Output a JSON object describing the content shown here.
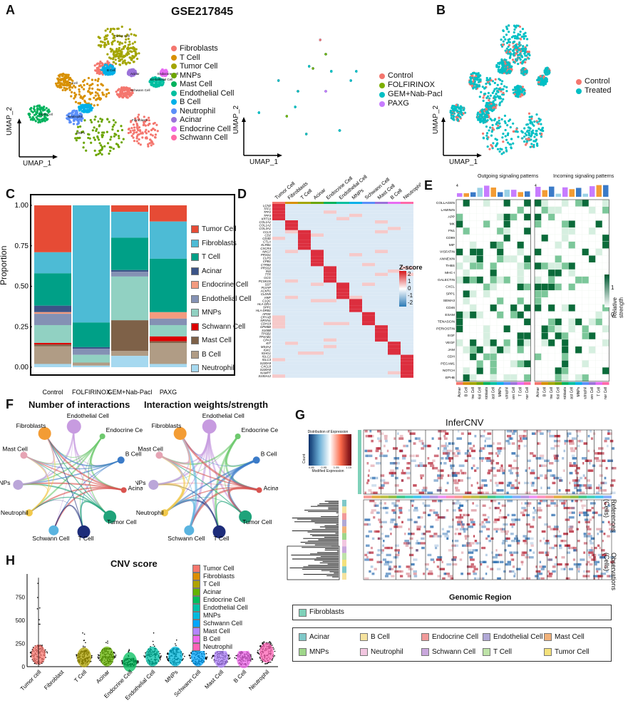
{
  "panel_labels": {
    "A": "A",
    "B": "B",
    "C": "C",
    "D": "D",
    "E": "E",
    "F": "F",
    "G": "G",
    "H": "H"
  },
  "panelA": {
    "title": "GSE217845",
    "umap_x": "UMAP_1",
    "umap_y": "UMAP_2",
    "celltypes": [
      {
        "name": "Fibroblasts",
        "color": "#F4766E"
      },
      {
        "name": "T Cell",
        "color": "#D89000"
      },
      {
        "name": "Tumor Cell",
        "color": "#A3A500"
      },
      {
        "name": "MNPs",
        "color": "#6CA500"
      },
      {
        "name": "Mast Cell",
        "color": "#00B25C"
      },
      {
        "name": "Endothelial Cell",
        "color": "#00BFA0"
      },
      {
        "name": "B Cell",
        "color": "#00B0E8"
      },
      {
        "name": "Neutrophil",
        "color": "#5B8FF9"
      },
      {
        "name": "Acinar",
        "color": "#9B72D9"
      },
      {
        "name": "Endocrine Cell",
        "color": "#E76BF3"
      },
      {
        "name": "Schwann Cell",
        "color": "#FF6AA8"
      }
    ],
    "cluster_labels": [
      "Tumor Cell",
      "T Cell",
      "B Cell",
      "Acinar",
      "Endothelial Cell",
      "Endocrine Cell",
      "Schwann Cell",
      "MNPs",
      "Neutrophil",
      "Mast Cell",
      "Fibroblasts"
    ],
    "treatments": [
      {
        "name": "Control",
        "color": "#F4766E"
      },
      {
        "name": "FOLFIRINOX",
        "color": "#7CAE00"
      },
      {
        "name": "GEM+Nab-Pacl",
        "color": "#00BFC4"
      },
      {
        "name": "PAXG",
        "color": "#C77CFF"
      }
    ],
    "umap_x2": "UMAP_1",
    "umap_y2": "UMAP_2"
  },
  "panelB": {
    "umap_x": "UMAP_1",
    "umap_y": "UMAP_2",
    "groups": [
      {
        "name": "Control",
        "color": "#F4766E"
      },
      {
        "name": "Treated",
        "color": "#00BFC4"
      }
    ]
  },
  "chart_data": [
    {
      "type": "bar",
      "panel": "C",
      "ylabel": "Proportion",
      "ylim": [
        0,
        1
      ],
      "yticks": [
        "0.00",
        "0.25",
        "0.50",
        "0.75",
        "1.00"
      ],
      "categories": [
        "Control",
        "FOLFIRINOX",
        "GEM+Nab-Pacl",
        "PAXG"
      ],
      "series": [
        {
          "name": "Tumor Cell",
          "color": "#E64B35",
          "values": [
            0.29,
            0.0,
            0.04,
            0.1
          ]
        },
        {
          "name": "Fibroblasts",
          "color": "#4DBBD5",
          "values": [
            0.13,
            0.76,
            0.16,
            0.23
          ]
        },
        {
          "name": "T Cell",
          "color": "#00A087",
          "values": [
            0.2,
            0.16,
            0.2,
            0.33
          ]
        },
        {
          "name": "Acinar",
          "color": "#3C5488",
          "values": [
            0.04,
            0.01,
            0.01,
            0.0
          ]
        },
        {
          "name": "Endocrine Cell",
          "color": "#F39B7F",
          "values": [
            0.01,
            0.0,
            0.0,
            0.04
          ]
        },
        {
          "name": "Endothelial Cell",
          "color": "#8491B4",
          "values": [
            0.07,
            0.04,
            0.03,
            0.04
          ]
        },
        {
          "name": "MNPs",
          "color": "#91D1C2",
          "values": [
            0.11,
            0.05,
            0.27,
            0.07
          ]
        },
        {
          "name": "Schwann Cell",
          "color": "#DC0000",
          "values": [
            0.01,
            0.0,
            0.0,
            0.03
          ]
        },
        {
          "name": "Mast Cell",
          "color": "#7E6148",
          "values": [
            0.01,
            0.0,
            0.19,
            0.01
          ]
        },
        {
          "name": "B Cell",
          "color": "#B09C85",
          "values": [
            0.11,
            0.02,
            0.03,
            0.13
          ]
        },
        {
          "name": "Neutrophil",
          "color": "#A6D9F0",
          "values": [
            0.02,
            0.01,
            0.07,
            0.02
          ]
        }
      ]
    },
    {
      "type": "heatmap",
      "panel": "D",
      "columns": [
        "Tumor Cell",
        "Fibroblasts",
        "T Cell",
        "Acinar",
        "Endocrine Cell",
        "Endothelial Cell",
        "MNPs",
        "Schwann Cell",
        "Mast Cell",
        "B Cell",
        "Neutrophil"
      ],
      "genes": [
        "LCN2",
        "TFF1",
        "TFF2",
        "TFF3",
        "KRT19",
        "COL1A1",
        "COL1A2",
        "COL3A1",
        "CCL5",
        "CD2",
        "CD3D",
        "CTLA",
        "KLRB1",
        "CXCR4",
        "NKG7",
        "PRSS1",
        "CLPS",
        "CPB1",
        "CTRB2",
        "PRSS2",
        "INS",
        "TTR",
        "GCG",
        "PCSK1N",
        "SST",
        "PLVAP",
        "ACKR1",
        "CLDN5",
        "VWF",
        "C1QC",
        "HLA-DRA",
        "SPP1",
        "HLA-DRB1",
        "APOE",
        "CRYAB",
        "NRXN1",
        "CDH19",
        "GPM6B",
        "S100B",
        "TPSB2",
        "TPSAB1",
        "CPA3",
        "KIT",
        "MS4A2",
        "IGKC",
        "IGHG1",
        "IGLC2",
        "IGLC3",
        "S100A9",
        "CXCL8",
        "S100A8",
        "NAMPT",
        "S100A12"
      ],
      "legend_title": "Z-score",
      "legend_ticks": [
        "2",
        "1",
        "0",
        "-1",
        "-2"
      ]
    },
    {
      "type": "heatmap",
      "panel": "E",
      "outgoing_title": "Outgoing signaling patterns",
      "incoming_title": "Incoming signaling patterns",
      "pathways": [
        "COLLAGEN",
        "LAMININ",
        "APP",
        "MK",
        "FN1",
        "CD99",
        "MIF",
        "VISFATIN",
        "ANNEXIN",
        "THBS",
        "MHC-I",
        "GALECTIN",
        "CXCL",
        "SPP1",
        "SEMA3",
        "CD46",
        "ESAM",
        "TENASCIN",
        "PERIOSTIN",
        "EGF",
        "VEGF",
        "JAM",
        "CDH",
        "PECAM1",
        "NOTCH",
        "EPHB"
      ],
      "columns": [
        "Acinar",
        "B Cell",
        "Endocrine Cell",
        "Endothelial Cell",
        "Fibroblasts",
        "Mast Cell",
        "MNPs",
        "Neutrophil",
        "Schwann Cell",
        "T Cell",
        "Tumor Cell"
      ],
      "bar_max_left": "4",
      "bar_max_right": "4",
      "legend_title": "Relative strength",
      "legend_ticks": [
        "1",
        "0"
      ]
    },
    {
      "type": "scatter",
      "panel": "H",
      "title": "CNV score",
      "categories": [
        "Tumor cell",
        "Fibroblast",
        "T Cell",
        "Acinar",
        "Endocrine Cell",
        "Endothelial Cell",
        "MNPs",
        "Schwann Cell",
        "Mast Cell",
        "B Cell",
        "Neutrophil"
      ],
      "medians": [
        130,
        0,
        100,
        110,
        50,
        110,
        110,
        110,
        95,
        90,
        150
      ],
      "max": [
        960,
        0,
        300,
        250,
        200,
        350,
        300,
        260,
        260,
        260,
        300
      ],
      "yticks": [
        "0",
        "250",
        "500",
        "750"
      ],
      "ylim": [
        0,
        1000
      ]
    }
  ],
  "panelF": {
    "title_left": "Number of interactions",
    "title_right": "Interaction weights/strength",
    "nodes": [
      {
        "name": "Endothelial Cell",
        "color": "#C79BE0"
      },
      {
        "name": "Endocrine Cell",
        "color": "#6EC96E"
      },
      {
        "name": "B Cell",
        "color": "#3B7BC8"
      },
      {
        "name": "Acinar",
        "color": "#D9534F"
      },
      {
        "name": "Tumor Cell",
        "color": "#1FA37A"
      },
      {
        "name": "T Cell",
        "color": "#1D2C7A"
      },
      {
        "name": "Schwann Cell",
        "color": "#5AB4E0"
      },
      {
        "name": "Neutrophil",
        "color": "#F2C94C"
      },
      {
        "name": "MNPs",
        "color": "#BBA6D9"
      },
      {
        "name": "Mast Cell",
        "color": "#E6A4B4"
      },
      {
        "name": "Fibroblasts",
        "color": "#F39C34"
      }
    ]
  },
  "panelG": {
    "title": "InferCNV",
    "key_title": "Distribution of Expression",
    "key_xlabel": "Modified Expression",
    "key_ylabel": "Count",
    "key_ticks": [
      "0.85",
      "0.95",
      "1.05",
      "1.15"
    ],
    "references_label": "References (Cells)",
    "observations_label": "Observations (Cells)",
    "xlabel": "Genomic Region",
    "ref_legend": [
      {
        "name": "Fibroblasts",
        "color": "#7FD1B9"
      }
    ],
    "obs_legend": [
      {
        "name": "Acinar",
        "color": "#7FC8C8"
      },
      {
        "name": "B Cell",
        "color": "#F6E39E"
      },
      {
        "name": "Endocrine Cell",
        "color": "#F19A9A"
      },
      {
        "name": "Endothelial Cell",
        "color": "#B0A8D6"
      },
      {
        "name": "Mast Cell",
        "color": "#F2B27A"
      },
      {
        "name": "MNPs",
        "color": "#9FD68A"
      },
      {
        "name": "Neutrophil",
        "color": "#F2C6E0"
      },
      {
        "name": "Schwann Cell",
        "color": "#C9A7DC"
      },
      {
        "name": "T Cell",
        "color": "#BEE3A8"
      },
      {
        "name": "Tumor Cell",
        "color": "#F4E17B"
      }
    ]
  },
  "panelH_legend": [
    {
      "name": "Tumor Cell",
      "color": "#F8766D"
    },
    {
      "name": "Fibroblasts",
      "color": "#DB8E00"
    },
    {
      "name": "T Cell",
      "color": "#AEA200"
    },
    {
      "name": "Acinar",
      "color": "#64B200"
    },
    {
      "name": "Endocrine Cell",
      "color": "#00BD5C"
    },
    {
      "name": "Endothelial Cell",
      "color": "#00C1A7"
    },
    {
      "name": "MNPs",
      "color": "#00BADE"
    },
    {
      "name": "Schwann Cell",
      "color": "#00A6FF"
    },
    {
      "name": "Mast Cell",
      "color": "#B385FF"
    },
    {
      "name": "B Cell",
      "color": "#EF67EB"
    },
    {
      "name": "Neutrophil",
      "color": "#FF63B6"
    }
  ]
}
